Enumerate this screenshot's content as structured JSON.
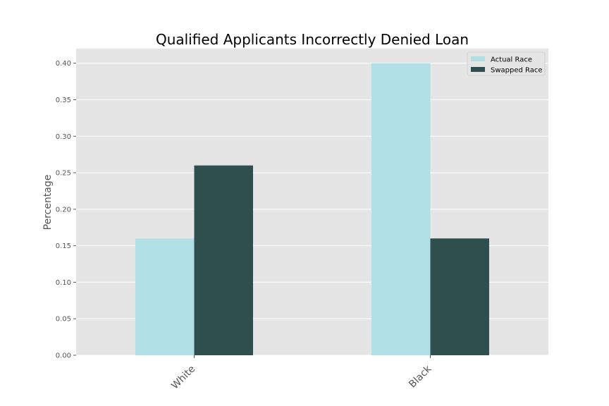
{
  "chart_data": {
    "type": "bar",
    "title": "Qualified Applicants Incorrectly Denied Loan",
    "xlabel": "",
    "ylabel": "Percentage",
    "categories": [
      "White",
      "Black"
    ],
    "series": [
      {
        "name": "Actual Race",
        "values": [
          0.16,
          0.4
        ],
        "color": "#b0e0e6"
      },
      {
        "name": "Swapped Race",
        "values": [
          0.26,
          0.16
        ],
        "color": "#2f4f4f"
      }
    ],
    "ylim": [
      0,
      0.42
    ],
    "yticks": [
      "0.00",
      "0.05",
      "0.10",
      "0.15",
      "0.20",
      "0.25",
      "0.30",
      "0.35",
      "0.40"
    ],
    "grid": true,
    "legend_position": "top-right",
    "background_color": "#e5e5e5",
    "grid_color": "#ffffff"
  }
}
